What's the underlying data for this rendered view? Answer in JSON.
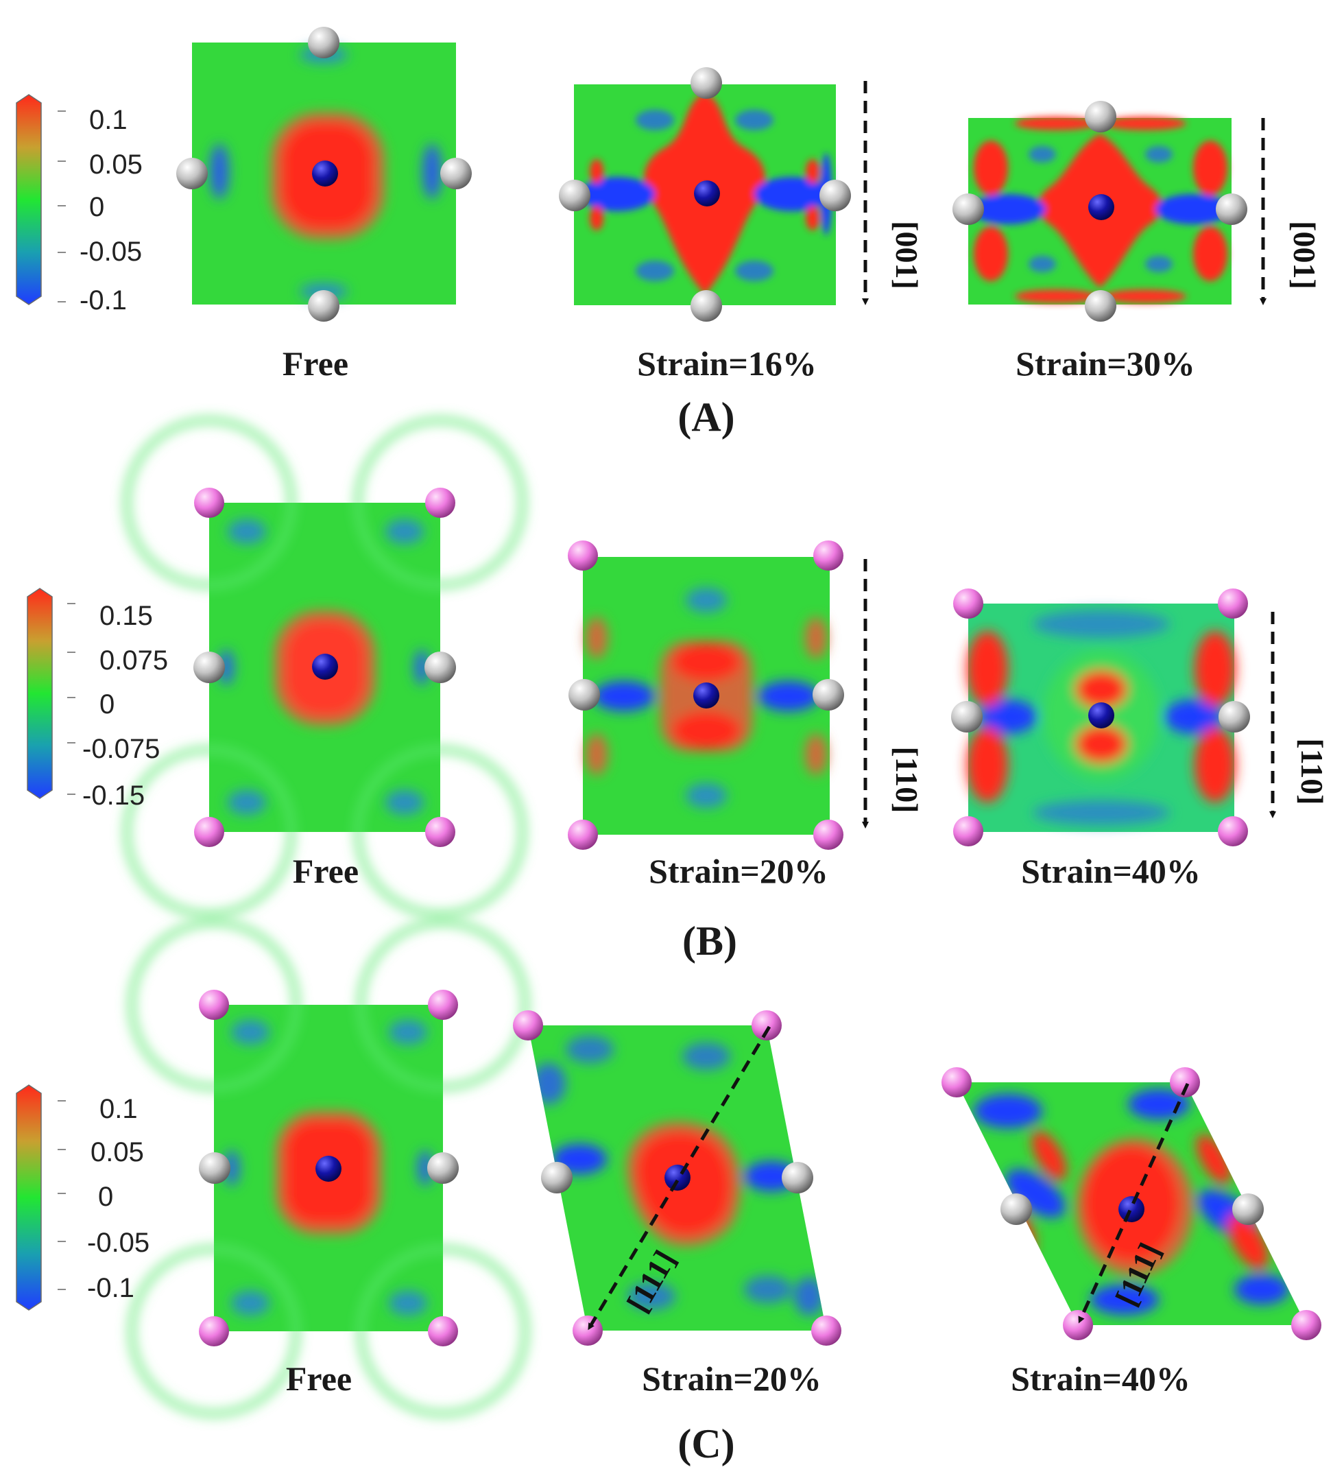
{
  "colors": {
    "positive": "#ff2a1a",
    "zero": "#22e632",
    "negative": "#1f3cff",
    "center_atom": "#10109a",
    "corner_atom_gray": "#b8b8b8",
    "corner_atom_pink": "#ee7ae0"
  },
  "panels": [
    {
      "id": "A",
      "label": "(A)",
      "colorbar": [
        "0.1",
        "0.05",
        "0",
        "-0.05",
        "-0.1"
      ],
      "subfigures": [
        {
          "caption": "Free"
        },
        {
          "caption": "Strain=16%",
          "direction": "[001]"
        },
        {
          "caption": "Strain=30%",
          "direction": "[001]"
        }
      ]
    },
    {
      "id": "B",
      "label": "(B)",
      "colorbar": [
        "0.15",
        "0.075",
        "0",
        "-0.075",
        "-0.15"
      ],
      "subfigures": [
        {
          "caption": "Free"
        },
        {
          "caption": "Strain=20%",
          "direction": "[110]"
        },
        {
          "caption": "Strain=40%",
          "direction": "[110]"
        }
      ]
    },
    {
      "id": "C",
      "label": "(C)",
      "colorbar": [
        "0.1",
        "0.05",
        "0",
        "-0.05",
        "-0.1"
      ],
      "subfigures": [
        {
          "caption": "Free"
        },
        {
          "caption": "Strain=20%",
          "direction": "[111]"
        },
        {
          "caption": "Strain=40%",
          "direction": "[111]"
        }
      ]
    }
  ]
}
